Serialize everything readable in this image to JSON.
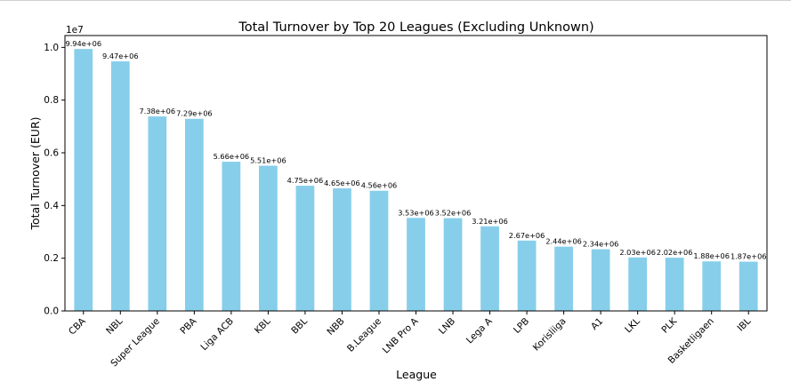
{
  "chart_data": {
    "type": "bar",
    "title": "Total Turnover by Top 20 Leagues (Excluding Unknown)",
    "xlabel": "League",
    "ylabel": "Total Turnover (EUR)",
    "y_offset_label": "1e7",
    "ylim": [
      0,
      10450000
    ],
    "yticks": [
      0,
      2000000,
      4000000,
      6000000,
      8000000,
      10000000
    ],
    "ytick_labels": [
      "0.0",
      "0.2",
      "0.4",
      "0.6",
      "0.8",
      "1.0"
    ],
    "bar_color": "#87ceeb",
    "grid": false,
    "categories": [
      "CBA",
      "NBL",
      "Super League",
      "PBA",
      "Liga ACB",
      "KBL",
      "BBL",
      "NBB",
      "B.League",
      "LNB Pro A",
      "LNB",
      "Lega A",
      "LPB",
      "Korisliiga",
      "A1",
      "LKL",
      "PLK",
      "Basketligaen",
      "IBL"
    ],
    "values": [
      9940000,
      9470000,
      7380000,
      7290000,
      5660000,
      5510000,
      4750000,
      4650000,
      4560000,
      3530000,
      3520000,
      3210000,
      2670000,
      2440000,
      2340000,
      2030000,
      2020000,
      1880000,
      1870000
    ],
    "value_labels": [
      "9.94e+06",
      "9.47e+06",
      "7.38e+06",
      "7.29e+06",
      "5.66e+06",
      "5.51e+06",
      "4.75e+06",
      "4.65e+06",
      "4.56e+06",
      "3.53e+06",
      "3.52e+06",
      "3.21e+06",
      "2.67e+06",
      "2.44e+06",
      "2.34e+06",
      "2.03e+06",
      "2.02e+06",
      "1.88e+06",
      "1.87e+06"
    ]
  }
}
